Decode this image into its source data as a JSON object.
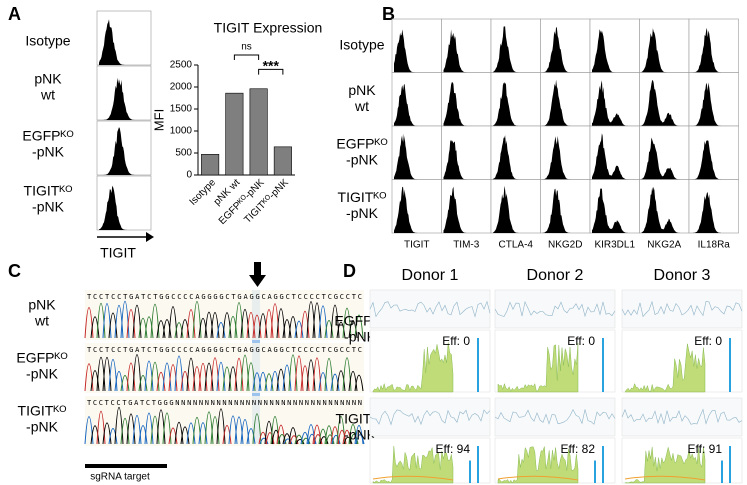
{
  "chart_data": {
    "type": "bar",
    "title": "TIGIT Expression",
    "y_label": "MFI",
    "categories": [
      "Isotype",
      "pNK wt",
      "EGFPᴷᴼ-pNK",
      "TIGITᴷᴼ-pNK"
    ],
    "values": [
      470,
      1860,
      1960,
      640
    ],
    "color": "#7f7f7f",
    "ylim": [
      0,
      2500
    ],
    "yticks": [
      0,
      500,
      1000,
      1500,
      2000,
      2500
    ],
    "annotations": [
      "ns",
      "***"
    ]
  },
  "panels": {
    "A": {
      "letter": "A",
      "rows": [
        [
          "Isotype"
        ],
        [
          "pNK",
          "wt"
        ],
        [
          "EGFPᴷᴼ",
          "-pNK"
        ],
        [
          "TIGITᴷᴼ",
          "-pNK"
        ]
      ],
      "x_label": "TIGIT"
    },
    "B": {
      "letter": "B",
      "rows": [
        [
          "Isotype"
        ],
        [
          "pNK",
          "wt"
        ],
        [
          "EGFPᴷᴼ",
          "-pNK"
        ],
        [
          "TIGITᴷᴼ",
          "-pNK"
        ]
      ],
      "markers": [
        "TIGIT",
        "TIM-3",
        "CTLA-4",
        "NKG2D",
        "KIR3DL1",
        "NKG2A",
        "IL18Ra"
      ]
    },
    "C": {
      "letter": "C",
      "rows": [
        [
          "pNK",
          "wt"
        ],
        [
          "EGFPᴷᴼ",
          "-pNK"
        ],
        [
          "TIGITᴷᴼ",
          "-pNK"
        ]
      ],
      "sequences": [
        "TCCTCCTGATCTGGCCCCAGGGGCTGAGGCAGGCTCCCCTCGCCTC",
        "TCCTCCTGATCTGGCCCCAGGGGCTGAGGCAGGCTCCCCTCGCCTC",
        "TCCTCCTGATCTGGGNNNNNNNNNNNNNNNNNNNNNNNNNNNNNNNN"
      ],
      "target_label": "sgRNA target"
    },
    "D": {
      "letter": "D",
      "donors": [
        "Donor 1",
        "Donor 2",
        "Donor 3"
      ],
      "rows": [
        [
          "EGFPᴷᴼ",
          "-pNK"
        ],
        [
          "TIGITᴷᴼ",
          "-pNK"
        ]
      ],
      "efficiencies": [
        [
          "Eff: 0",
          "Eff: 0",
          "Eff: 0"
        ],
        [
          "Eff: 94",
          "Eff: 82",
          "Eff: 91"
        ]
      ]
    }
  }
}
